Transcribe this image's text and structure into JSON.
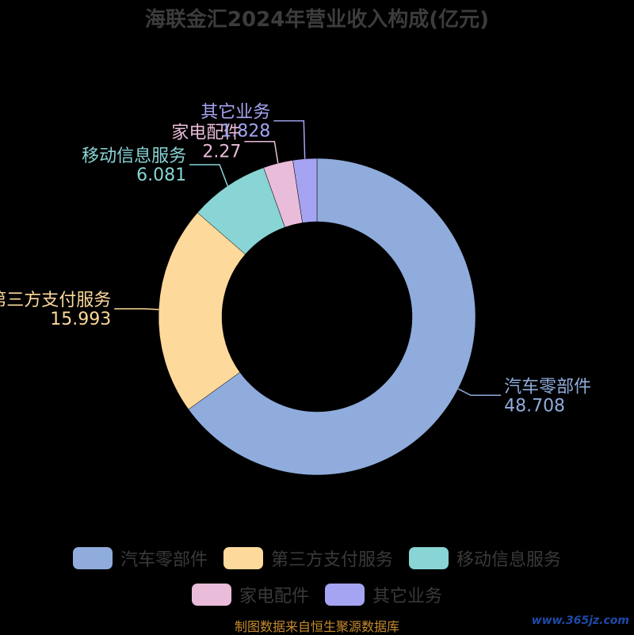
{
  "chart_data": {
    "type": "pie",
    "title": "海联金汇2024年营业收入构成(亿元)",
    "categories": [
      "汽车零部件",
      "第三方支付服务",
      "移动信息服务",
      "家电配件",
      "其它业务"
    ],
    "values": [
      48.708,
      15.993,
      6.081,
      2.27,
      1.828
    ],
    "value_labels": [
      "48.708",
      "15.993",
      "6.081",
      "2.27",
      "1.828"
    ],
    "colors": [
      "#8facdc",
      "#fdd99b",
      "#89d4d5",
      "#e9bcd9",
      "#a4a4f2"
    ],
    "donut": true,
    "legend_position": "bottom"
  },
  "footer": {
    "source": "制图数据来自恒生聚源数据库"
  },
  "watermark": "www.365jz.com"
}
